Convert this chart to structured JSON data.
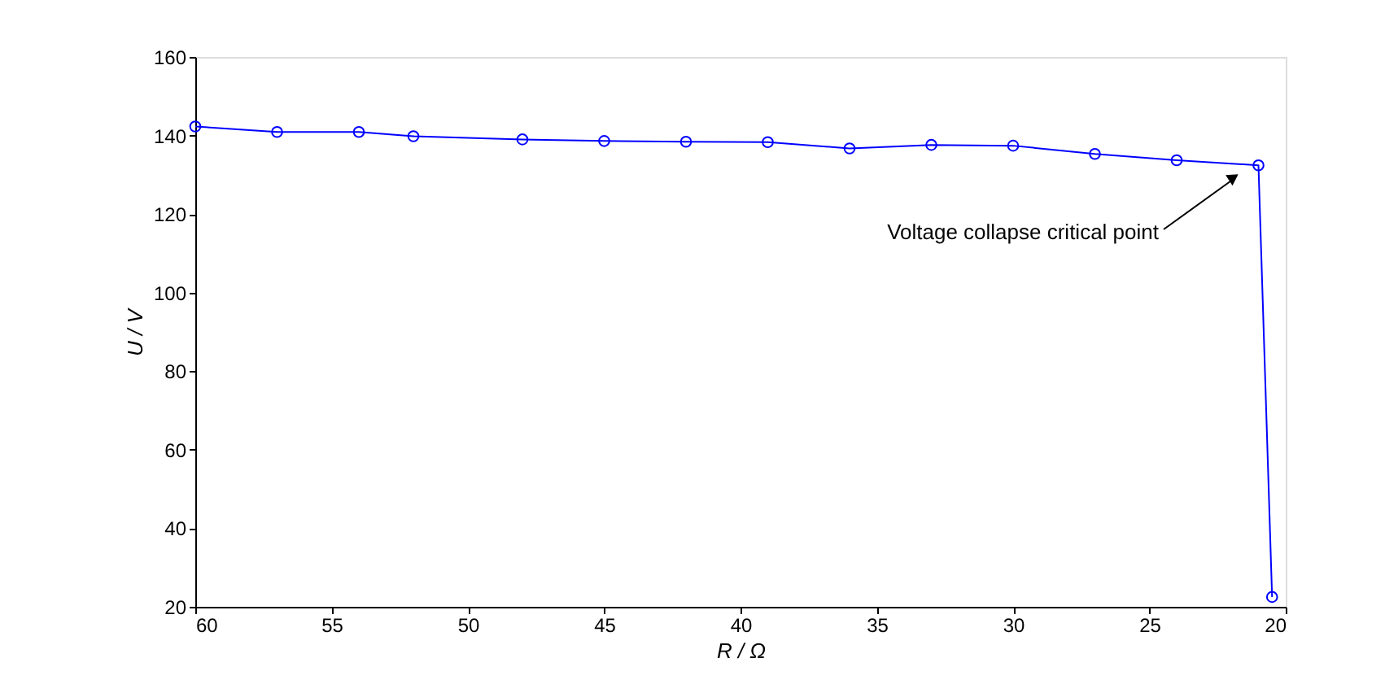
{
  "chart_data": {
    "type": "line",
    "xlabel": "R / Ω",
    "ylabel": "U / V",
    "x": [
      60,
      57,
      54,
      52,
      48,
      45,
      42,
      39,
      36,
      33,
      30,
      27,
      24,
      21,
      20.5
    ],
    "series": [
      {
        "color": "#0000ff",
        "values": [
          142.3,
          140.9,
          140.9,
          139.8,
          139.0,
          138.6,
          138.4,
          138.3,
          136.7,
          137.6,
          137.4,
          135.3,
          133.7,
          132.4,
          22.5
        ]
      }
    ],
    "xlim": [
      60,
      20
    ],
    "xticks": [
      60,
      55,
      50,
      45,
      40,
      35,
      30,
      25,
      20
    ],
    "ylim": [
      20,
      160
    ],
    "yticks": [
      20,
      40,
      60,
      80,
      100,
      120,
      140,
      160
    ],
    "marker": "circle",
    "line_style": "solid",
    "grid": false,
    "annotations": [
      "Voltage collapse critical point"
    ]
  }
}
